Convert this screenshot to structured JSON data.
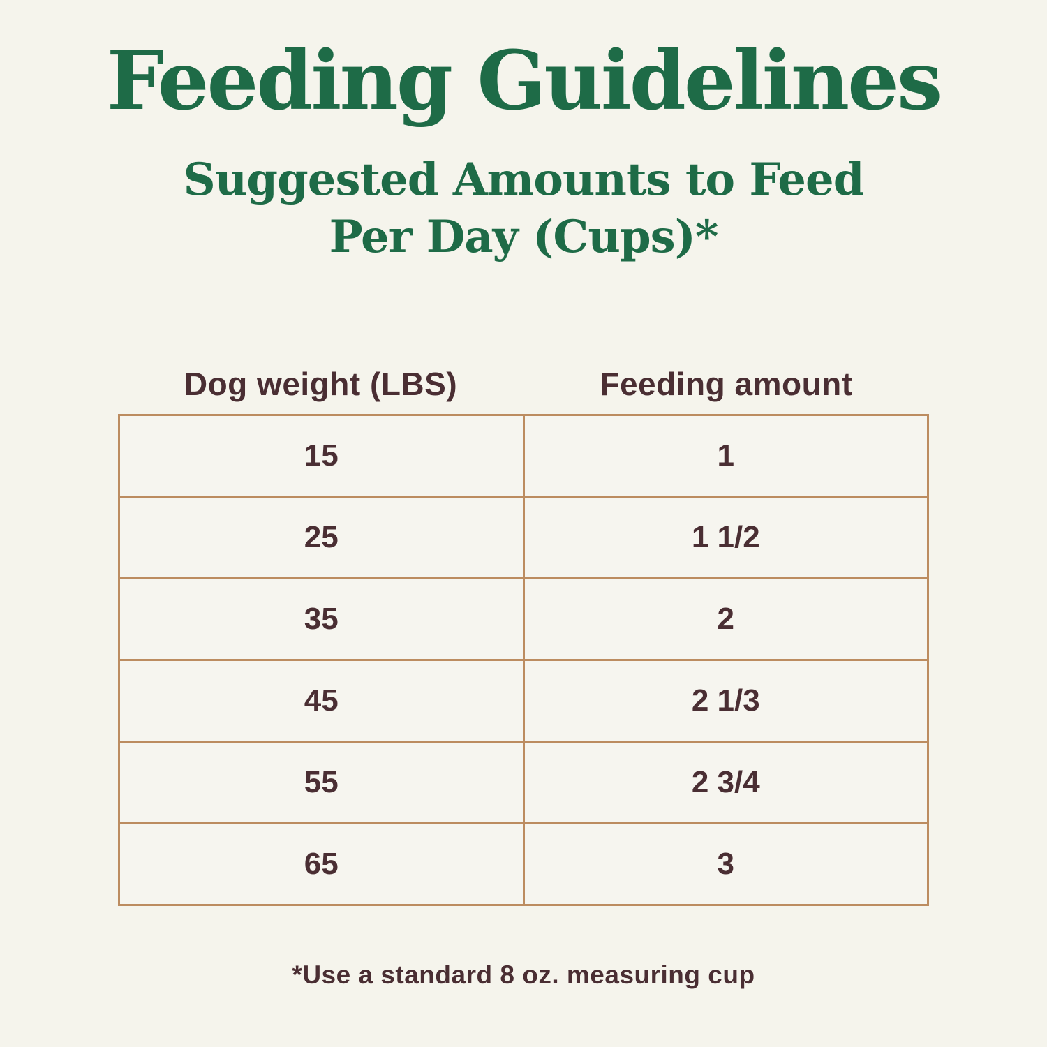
{
  "page": {
    "title": "Feeding Guidelines",
    "subtitle_line1": "Suggested Amounts to Feed",
    "subtitle_line2": "Per Day (Cups)*",
    "footnote": "*Use a standard 8 oz. measuring cup"
  },
  "table": {
    "headers": {
      "weight": "Dog weight (LBS)",
      "amount": "Feeding amount"
    },
    "rows": [
      {
        "weight": "15",
        "amount": "1"
      },
      {
        "weight": "25",
        "amount": "1 1/2"
      },
      {
        "weight": "35",
        "amount": "2"
      },
      {
        "weight": "45",
        "amount": "2 1/3"
      },
      {
        "weight": "55",
        "amount": "2 3/4"
      },
      {
        "weight": "65",
        "amount": "3"
      }
    ]
  },
  "colors": {
    "background": "#f5f4ec",
    "title_green": "#1e6b47",
    "text_brown": "#4a2e33",
    "table_border_tan": "#bc8c60"
  },
  "chart_data": {
    "type": "table",
    "title": "Feeding Guidelines",
    "subtitle": "Suggested Amounts to Feed Per Day (Cups)*",
    "columns": [
      "Dog weight (LBS)",
      "Feeding amount"
    ],
    "rows": [
      [
        "15",
        "1"
      ],
      [
        "25",
        "1 1/2"
      ],
      [
        "35",
        "2"
      ],
      [
        "45",
        "2 1/3"
      ],
      [
        "55",
        "2 3/4"
      ],
      [
        "65",
        "3"
      ]
    ],
    "dog_weight_lbs": [
      15,
      25,
      35,
      45,
      55,
      65
    ],
    "feeding_amount_cups": [
      1,
      1.5,
      2,
      2.33,
      2.75,
      3
    ],
    "footnote": "*Use a standard 8 oz. measuring cup"
  }
}
